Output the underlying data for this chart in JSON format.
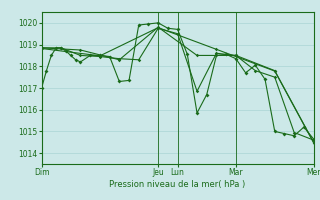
{
  "bg_color": "#cce8e8",
  "grid_color": "#aad4d4",
  "line_color": "#1a6b1a",
  "marker_color": "#1a6b1a",
  "xlabel": "Pression niveau de la mer( hPa )",
  "ylim": [
    1013.5,
    1020.5
  ],
  "yticks": [
    1014,
    1015,
    1016,
    1017,
    1018,
    1019,
    1020
  ],
  "xlim": [
    0,
    168
  ],
  "day_labels": [
    "Dim",
    "Jeu",
    "Lun",
    "Mar",
    "Mer"
  ],
  "day_positions": [
    0,
    72,
    84,
    120,
    168
  ],
  "vert_line_positions": [
    0,
    72,
    84,
    120,
    168
  ],
  "series": [
    {
      "x": [
        0,
        3,
        6,
        9,
        12,
        15,
        18,
        21,
        24,
        30,
        36,
        42,
        48,
        54,
        60,
        66,
        72,
        78,
        84,
        90,
        96,
        102,
        108,
        114,
        120,
        126,
        132,
        138,
        144,
        150,
        156,
        162,
        168
      ],
      "y": [
        1017.0,
        1017.8,
        1018.5,
        1018.85,
        1018.85,
        1018.7,
        1018.5,
        1018.3,
        1018.2,
        1018.5,
        1018.5,
        1018.45,
        1017.3,
        1017.35,
        1019.9,
        1019.95,
        1020.0,
        1019.75,
        1019.7,
        1018.55,
        1015.85,
        1016.7,
        1018.5,
        1018.55,
        1018.35,
        1017.7,
        1018.05,
        1017.4,
        1015.0,
        1014.9,
        1014.8,
        1015.2,
        1014.65
      ]
    },
    {
      "x": [
        0,
        12,
        24,
        36,
        48,
        60,
        72,
        84,
        96,
        108,
        120,
        132,
        144,
        156,
        168
      ],
      "y": [
        1018.85,
        1018.85,
        1018.5,
        1018.45,
        1018.35,
        1018.3,
        1019.75,
        1019.5,
        1016.85,
        1018.6,
        1018.5,
        1017.8,
        1017.5,
        1014.95,
        1014.6
      ]
    },
    {
      "x": [
        0,
        24,
        48,
        72,
        96,
        120,
        144,
        168
      ],
      "y": [
        1018.85,
        1018.75,
        1018.3,
        1019.8,
        1018.5,
        1018.5,
        1017.8,
        1014.5
      ]
    },
    {
      "x": [
        0,
        36,
        72,
        108,
        144,
        168
      ],
      "y": [
        1018.82,
        1018.48,
        1019.78,
        1018.78,
        1017.78,
        1014.48
      ]
    }
  ]
}
